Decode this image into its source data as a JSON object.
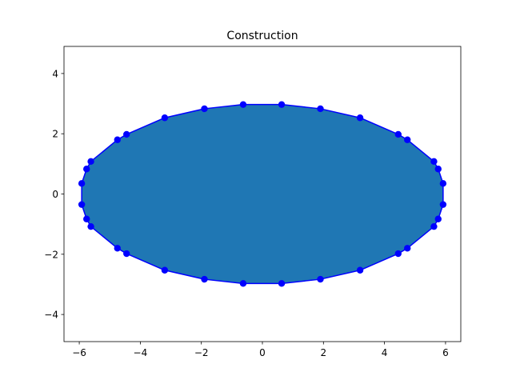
{
  "chart_data": {
    "type": "scatter",
    "title": "Construction",
    "xlabel": "",
    "ylabel": "",
    "xlim": [
      -6.5,
      6.5
    ],
    "ylim": [
      -4.9,
      4.9
    ],
    "xticks": [
      -6,
      -4,
      -2,
      0,
      2,
      4,
      6
    ],
    "yticks": [
      -4,
      -2,
      0,
      2,
      4
    ],
    "xtick_labels": [
      "−6",
      "−4",
      "−2",
      "0",
      "2",
      "4",
      "6"
    ],
    "ytick_labels": [
      "−4",
      "−2",
      "0",
      "2",
      "4"
    ],
    "grid": false,
    "fill_color": "#1f77b4",
    "line_color": "#0000ff",
    "marker_color": "#0000ff",
    "series": [
      {
        "points": [
          [
            5.92,
            0.35
          ],
          [
            5.92,
            -0.35
          ],
          [
            5.76,
            -0.83
          ],
          [
            5.62,
            -1.08
          ],
          [
            4.75,
            -1.8
          ],
          [
            4.45,
            -1.98
          ],
          [
            3.2,
            -2.53
          ],
          [
            1.9,
            -2.83
          ],
          [
            0.63,
            -2.97
          ],
          [
            -0.63,
            -2.97
          ],
          [
            -1.9,
            -2.83
          ],
          [
            -3.2,
            -2.53
          ],
          [
            -4.45,
            -1.98
          ],
          [
            -4.75,
            -1.8
          ],
          [
            -5.62,
            -1.08
          ],
          [
            -5.76,
            -0.83
          ],
          [
            -5.92,
            -0.35
          ],
          [
            -5.92,
            0.35
          ],
          [
            -5.76,
            0.83
          ],
          [
            -5.62,
            1.08
          ],
          [
            -4.75,
            1.8
          ],
          [
            -4.45,
            1.98
          ],
          [
            -3.2,
            2.53
          ],
          [
            -1.9,
            2.83
          ],
          [
            -0.63,
            2.97
          ],
          [
            0.63,
            2.97
          ],
          [
            1.9,
            2.83
          ],
          [
            3.2,
            2.53
          ],
          [
            4.45,
            1.98
          ],
          [
            4.75,
            1.8
          ],
          [
            5.62,
            1.08
          ],
          [
            5.76,
            0.83
          ]
        ]
      }
    ]
  }
}
